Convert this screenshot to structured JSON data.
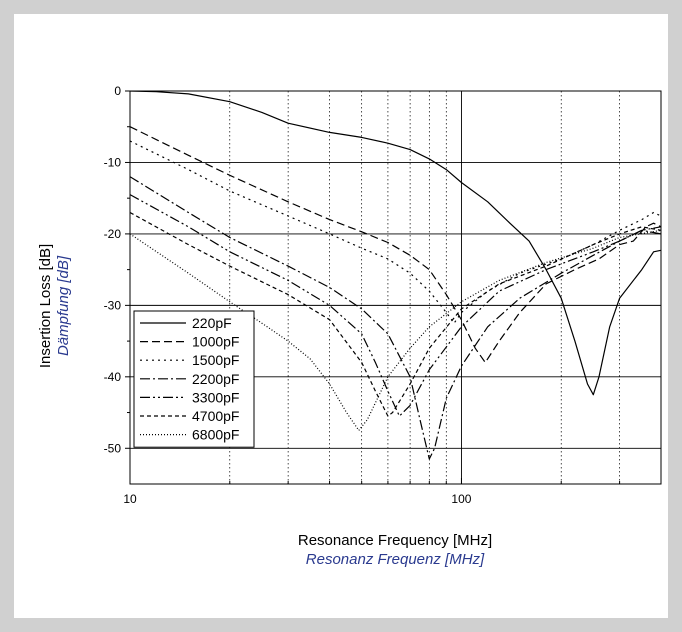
{
  "colors": {
    "outer_background": "#d0d0d0",
    "panel_background": "#ffffff",
    "german_label": "#2a3a8f",
    "line": "#000000"
  },
  "chart_data": {
    "type": "line",
    "xscale": "log",
    "xlim": [
      10,
      400
    ],
    "ylim": [
      -55,
      0
    ],
    "xlabel": "Resonance Frequency [MHz]",
    "xlabel_secondary": "Resonanz Frequenz [MHz]",
    "ylabel": "Insertion Loss [dB]",
    "ylabel_secondary": "Dämpfung [dB]",
    "x_tick_labels": [
      "10",
      "100"
    ],
    "x_ticks": [
      10,
      100
    ],
    "y_ticks": [
      0,
      -10,
      -20,
      -30,
      -40,
      -50
    ],
    "y_tick_labels": [
      "0",
      "-10",
      "-20",
      "-30",
      "-40",
      "-50"
    ],
    "grid": "major solid, minor dotted",
    "legend_position": "bottom-left",
    "series": [
      {
        "name": "220pF",
        "dash": "solid",
        "points": [
          [
            10,
            0
          ],
          [
            12,
            -0.1
          ],
          [
            15,
            -0.4
          ],
          [
            20,
            -1.5
          ],
          [
            25,
            -3
          ],
          [
            30,
            -4.5
          ],
          [
            40,
            -5.8
          ],
          [
            50,
            -6.5
          ],
          [
            60,
            -7.3
          ],
          [
            70,
            -8.2
          ],
          [
            80,
            -9.5
          ],
          [
            90,
            -11
          ],
          [
            100,
            -12.8
          ],
          [
            120,
            -15.5
          ],
          [
            140,
            -18.5
          ],
          [
            160,
            -21
          ],
          [
            180,
            -25
          ],
          [
            200,
            -29
          ],
          [
            220,
            -35
          ],
          [
            240,
            -41
          ],
          [
            250,
            -42.5
          ],
          [
            260,
            -40
          ],
          [
            280,
            -33
          ],
          [
            300,
            -29
          ],
          [
            350,
            -25
          ],
          [
            380,
            -22.5
          ],
          [
            400,
            -22.3
          ]
        ]
      },
      {
        "name": "1000pF",
        "dash": "8,4",
        "points": [
          [
            10,
            -5
          ],
          [
            15,
            -9
          ],
          [
            20,
            -11.8
          ],
          [
            30,
            -15.5
          ],
          [
            40,
            -18
          ],
          [
            50,
            -19.7
          ],
          [
            60,
            -21.2
          ],
          [
            70,
            -23
          ],
          [
            80,
            -25
          ],
          [
            90,
            -28.5
          ],
          [
            100,
            -32
          ],
          [
            110,
            -36
          ],
          [
            118,
            -38
          ],
          [
            130,
            -35
          ],
          [
            150,
            -31
          ],
          [
            180,
            -27
          ],
          [
            220,
            -25
          ],
          [
            260,
            -23.5
          ],
          [
            300,
            -21.5
          ],
          [
            330,
            -21
          ],
          [
            360,
            -19
          ],
          [
            380,
            -18.5
          ],
          [
            400,
            -19
          ]
        ]
      },
      {
        "name": "1500pF",
        "dash": "2,4",
        "points": [
          [
            10,
            -7
          ],
          [
            15,
            -11
          ],
          [
            20,
            -14
          ],
          [
            30,
            -17.5
          ],
          [
            40,
            -20
          ],
          [
            50,
            -22
          ],
          [
            60,
            -23.5
          ],
          [
            70,
            -25.5
          ],
          [
            80,
            -28
          ],
          [
            90,
            -31
          ],
          [
            95,
            -32.5
          ],
          [
            100,
            -31
          ],
          [
            120,
            -28
          ],
          [
            150,
            -25.5
          ],
          [
            200,
            -23.5
          ],
          [
            250,
            -21.5
          ],
          [
            300,
            -19.5
          ],
          [
            350,
            -18
          ],
          [
            380,
            -17
          ],
          [
            400,
            -17.5
          ]
        ]
      },
      {
        "name": "2200pF",
        "dash": "10,3,2,3",
        "points": [
          [
            10,
            -12
          ],
          [
            15,
            -17
          ],
          [
            20,
            -20.5
          ],
          [
            30,
            -24.5
          ],
          [
            40,
            -27.5
          ],
          [
            50,
            -30.5
          ],
          [
            60,
            -34
          ],
          [
            70,
            -40
          ],
          [
            75,
            -46
          ],
          [
            80,
            -51.5
          ],
          [
            83,
            -50
          ],
          [
            90,
            -43
          ],
          [
            100,
            -38.5
          ],
          [
            120,
            -33
          ],
          [
            150,
            -29
          ],
          [
            200,
            -25.5
          ],
          [
            250,
            -23
          ],
          [
            300,
            -21
          ],
          [
            350,
            -19.5
          ],
          [
            400,
            -20
          ]
        ]
      },
      {
        "name": "3300pF",
        "dash": "10,3,2,3,2,3",
        "points": [
          [
            10,
            -14.5
          ],
          [
            15,
            -19
          ],
          [
            20,
            -22.5
          ],
          [
            30,
            -26.5
          ],
          [
            40,
            -30
          ],
          [
            50,
            -34
          ],
          [
            55,
            -38
          ],
          [
            60,
            -42
          ],
          [
            65,
            -45.5
          ],
          [
            70,
            -44
          ],
          [
            80,
            -39
          ],
          [
            100,
            -33
          ],
          [
            130,
            -28
          ],
          [
            180,
            -25
          ],
          [
            250,
            -22.5
          ],
          [
            300,
            -21
          ],
          [
            350,
            -19.5
          ],
          [
            400,
            -19
          ]
        ]
      },
      {
        "name": "4700pF",
        "dash": "4,3",
        "points": [
          [
            10,
            -17
          ],
          [
            15,
            -21.5
          ],
          [
            20,
            -24.5
          ],
          [
            30,
            -28.5
          ],
          [
            40,
            -32
          ],
          [
            50,
            -38
          ],
          [
            55,
            -42
          ],
          [
            60,
            -45.5
          ],
          [
            62,
            -45
          ],
          [
            70,
            -41
          ],
          [
            80,
            -36
          ],
          [
            100,
            -30.5
          ],
          [
            130,
            -27
          ],
          [
            180,
            -24.5
          ],
          [
            250,
            -21.5
          ],
          [
            300,
            -20
          ],
          [
            350,
            -19
          ],
          [
            400,
            -19.5
          ]
        ]
      },
      {
        "name": "6800pF",
        "dash": "1,2",
        "points": [
          [
            10,
            -20
          ],
          [
            15,
            -25.5
          ],
          [
            20,
            -29.5
          ],
          [
            25,
            -32.5
          ],
          [
            30,
            -35
          ],
          [
            35,
            -37.5
          ],
          [
            40,
            -41
          ],
          [
            45,
            -45
          ],
          [
            49,
            -47.5
          ],
          [
            52,
            -46
          ],
          [
            60,
            -40
          ],
          [
            70,
            -36
          ],
          [
            80,
            -33
          ],
          [
            100,
            -29.5
          ],
          [
            130,
            -26.5
          ],
          [
            180,
            -24
          ],
          [
            250,
            -22
          ],
          [
            300,
            -20.5
          ],
          [
            400,
            -19.5
          ]
        ]
      }
    ]
  }
}
